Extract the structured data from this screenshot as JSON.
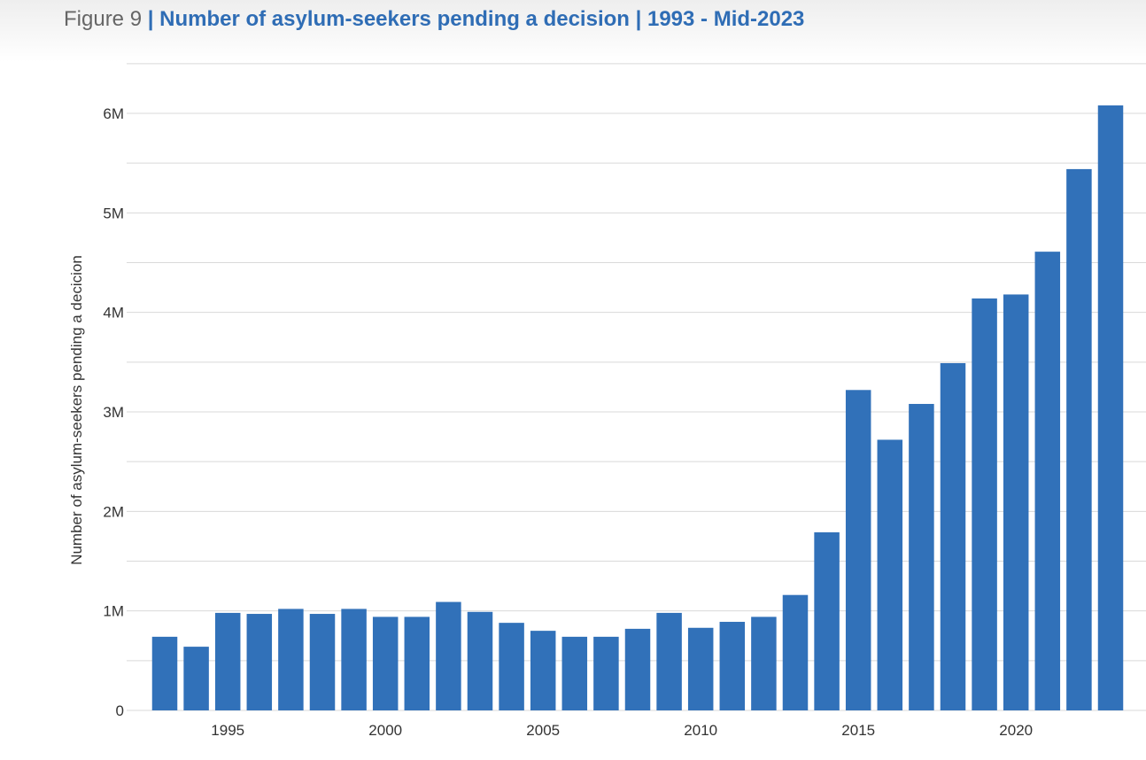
{
  "figure": {
    "label": "Figure 9",
    "separator": " | ",
    "title": "Number of asylum-seekers pending a decision | 1993 - Mid-2023"
  },
  "colors": {
    "bar": "#3171b9",
    "title_accent": "#2f6db5",
    "grid": "#d9d9d9",
    "axis_text": "#333333"
  },
  "chart_data": {
    "type": "bar",
    "title": "Number of asylum-seekers pending a decision | 1993 - Mid-2023",
    "xlabel": "",
    "ylabel": "Number of asylum-seekers pending a decicion",
    "categories": [
      1993,
      1994,
      1995,
      1996,
      1997,
      1998,
      1999,
      2000,
      2001,
      2002,
      2003,
      2004,
      2005,
      2006,
      2007,
      2008,
      2009,
      2010,
      2011,
      2012,
      2013,
      2014,
      2015,
      2016,
      2017,
      2018,
      2019,
      2020,
      2021,
      2022,
      "Mid-2023"
    ],
    "values": [
      740000,
      640000,
      980000,
      970000,
      1020000,
      970000,
      1020000,
      940000,
      940000,
      1090000,
      990000,
      880000,
      800000,
      740000,
      740000,
      820000,
      980000,
      830000,
      890000,
      940000,
      1160000,
      1790000,
      3220000,
      2720000,
      3080000,
      3490000,
      4140000,
      4180000,
      4610000,
      5440000,
      6080000
    ],
    "ylim": [
      0,
      6000000
    ],
    "y_ticks": [
      {
        "value": 0,
        "label": "0"
      },
      {
        "value": 1000000,
        "label": "1M"
      },
      {
        "value": 2000000,
        "label": "2M"
      },
      {
        "value": 3000000,
        "label": "3M"
      },
      {
        "value": 4000000,
        "label": "4M"
      },
      {
        "value": 5000000,
        "label": "5M"
      },
      {
        "value": 6000000,
        "label": "6M"
      }
    ],
    "minor_grid_values": [
      500000,
      1500000,
      2500000,
      3500000,
      4500000,
      5500000,
      6500000
    ],
    "x_ticks": [
      {
        "index": 2,
        "label": "1995"
      },
      {
        "index": 7,
        "label": "2000"
      },
      {
        "index": 12,
        "label": "2005"
      },
      {
        "index": 17,
        "label": "2010"
      },
      {
        "index": 22,
        "label": "2015"
      },
      {
        "index": 27,
        "label": "2020"
      }
    ],
    "grid": true,
    "legend": "none"
  }
}
